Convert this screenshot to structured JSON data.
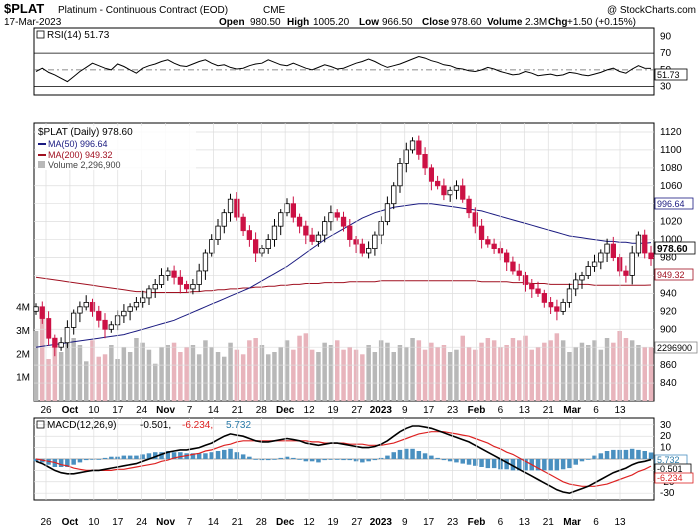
{
  "header": {
    "symbol": "$PLAT",
    "name": "Platinum - Continuous Contract (EOD)",
    "exchange": "CME",
    "copyright": "@ StockCharts.com",
    "date": "17-Mar-2023",
    "open_label": "Open",
    "open": "980.50",
    "high_label": "High",
    "high": "1005.20",
    "low_label": "Low",
    "low": "966.50",
    "close_label": "Close",
    "close": "978.60",
    "volume_label": "Volume",
    "volume": "2.3M",
    "chg_label": "Chg",
    "chg": "+1.50 (+0.15%)"
  },
  "colors": {
    "up": "#000000",
    "down": "#cc1144",
    "ma50": "#1a1a80",
    "ma200": "#a01020",
    "vol_up": "#b8b8b8",
    "vol_down": "#e8b4bc",
    "macd_line": "#000000",
    "macd_signal": "#dd2222",
    "macd_hist": "#4a90c0",
    "grid": "#dddddd"
  },
  "rsi": {
    "legend": "RSI(14) 51.73",
    "value_badge": "51.73",
    "ticks": [
      "90",
      "70",
      "50",
      "30"
    ]
  },
  "price": {
    "legend_title": "$PLAT (Daily) 978.60",
    "legend_ma50": "MA(50) 996.64",
    "legend_ma200": "MA(200) 949.32",
    "legend_volume": "Volume 2,296,900",
    "badge_ma50": "996.64",
    "badge_close": "978.60",
    "badge_ma200": "949.32",
    "badge_volume": "2296900",
    "ticks": [
      "1120",
      "1100",
      "1080",
      "1060",
      "1040",
      "1020",
      "1000",
      "980",
      "960",
      "940",
      "920",
      "900",
      "880",
      "860",
      "840"
    ],
    "volume_ticks": [
      "4M",
      "3M",
      "2M",
      "1M"
    ]
  },
  "macd": {
    "legend_label": "MACD(12,26,9)",
    "legend_macd": "-0.501,",
    "legend_signal": "-6.234,",
    "legend_hist": "5.732",
    "badge_hist": "5.732",
    "badge_macd": "-0.501",
    "badge_signal": "-6.234",
    "ticks": [
      "30",
      "20",
      "10",
      "0",
      "-10",
      "-20",
      "-30"
    ]
  },
  "x_labels": [
    "26",
    "Oct",
    "10",
    "17",
    "24",
    "Nov",
    "7",
    "14",
    "21",
    "28",
    "Dec",
    "12",
    "19",
    "27",
    "2023",
    "9",
    "17",
    "23",
    "Feb",
    "6",
    "13",
    "21",
    "Mar",
    "6",
    "13"
  ],
  "chart_data": [
    {
      "type": "line",
      "title": "RSI(14) 51.73",
      "ylim": [
        20,
        100
      ],
      "yticks": [
        30,
        50,
        70,
        90
      ],
      "reference_lines": [
        30,
        50,
        70
      ],
      "series": [
        {
          "name": "RSI(14)",
          "values": [
            48,
            52,
            47,
            44,
            40,
            36,
            42,
            48,
            53,
            58,
            55,
            52,
            50,
            57,
            54,
            50,
            46,
            52,
            55,
            57,
            60,
            62,
            58,
            55,
            54,
            57,
            60,
            62,
            58,
            55,
            56,
            53,
            51,
            52,
            55,
            57,
            58,
            62,
            59,
            56,
            55,
            58,
            55,
            52,
            50,
            53,
            56,
            54,
            51,
            52,
            55,
            58,
            60,
            63,
            60,
            56,
            53,
            55,
            57,
            60,
            63,
            66,
            64,
            61,
            59,
            56,
            55,
            52,
            51,
            49,
            48,
            50,
            53,
            51,
            48,
            46,
            44,
            45,
            48,
            46,
            43,
            44,
            45,
            43,
            44,
            47,
            46,
            44,
            43,
            45,
            47,
            50,
            52,
            48,
            46,
            51,
            55,
            52,
            51.73
          ]
        }
      ]
    },
    {
      "type": "candlestick",
      "title": "$PLAT (Daily) 978.60",
      "ylim": [
        820,
        1130
      ],
      "yticks": [
        840,
        860,
        880,
        900,
        920,
        940,
        960,
        980,
        1000,
        1020,
        1040,
        1060,
        1080,
        1100,
        1120
      ],
      "close": [
        925,
        912,
        890,
        880,
        885,
        902,
        918,
        925,
        930,
        920,
        910,
        900,
        905,
        915,
        920,
        925,
        930,
        935,
        945,
        950,
        960,
        965,
        958,
        950,
        945,
        950,
        965,
        985,
        1000,
        1015,
        1030,
        1045,
        1025,
        1010,
        1000,
        985,
        990,
        1000,
        1015,
        1030,
        1040,
        1025,
        1015,
        1005,
        998,
        1005,
        1020,
        1030,
        1025,
        1015,
        1000,
        995,
        985,
        990,
        1005,
        1020,
        1040,
        1060,
        1085,
        1100,
        1110,
        1095,
        1080,
        1065,
        1060,
        1050,
        1055,
        1060,
        1045,
        1030,
        1015,
        1000,
        995,
        990,
        985,
        975,
        965,
        960,
        950,
        945,
        940,
        930,
        925,
        920,
        930,
        945,
        955,
        960,
        970,
        975,
        985,
        995,
        980,
        965,
        960,
        985,
        1005,
        985,
        978.6
      ],
      "ma50": [
        880,
        881,
        882,
        883,
        884,
        885,
        886,
        887,
        888,
        889,
        890,
        891,
        892,
        893,
        894,
        896,
        898,
        900,
        902,
        904,
        906,
        908,
        910,
        913,
        916,
        919,
        922,
        925,
        928,
        931,
        934,
        937,
        940,
        943,
        946,
        950,
        954,
        958,
        962,
        966,
        970,
        975,
        980,
        985,
        990,
        995,
        1000,
        1004,
        1008,
        1012,
        1016,
        1020,
        1024,
        1027,
        1030,
        1032,
        1034,
        1036,
        1037,
        1038,
        1039,
        1040,
        1040,
        1040,
        1039,
        1038,
        1037,
        1036,
        1035,
        1034,
        1033,
        1032,
        1030,
        1028,
        1026,
        1024,
        1022,
        1020,
        1018,
        1016,
        1014,
        1012,
        1010,
        1008,
        1006,
        1004,
        1003,
        1002,
        1001,
        1000,
        999,
        998,
        998,
        997,
        997,
        996,
        996,
        996,
        996.64
      ],
      "ma200": [
        958,
        957,
        956,
        955,
        954,
        953,
        952,
        951,
        950,
        949,
        948,
        947,
        946,
        945,
        944,
        943,
        942,
        942,
        941,
        941,
        941,
        941,
        941,
        941,
        941,
        942,
        942,
        943,
        943,
        944,
        944,
        945,
        945,
        946,
        946,
        947,
        947,
        948,
        948,
        949,
        949,
        950,
        950,
        951,
        951,
        951,
        952,
        952,
        952,
        952,
        953,
        953,
        953,
        953,
        953,
        954,
        954,
        954,
        954,
        954,
        954,
        954,
        954,
        954,
        954,
        954,
        954,
        954,
        954,
        954,
        954,
        953,
        953,
        953,
        953,
        953,
        952,
        952,
        952,
        951,
        951,
        951,
        950,
        950,
        950,
        950,
        950,
        950,
        950,
        949,
        949,
        949,
        949,
        949,
        949,
        949,
        949,
        949,
        949.32
      ]
    },
    {
      "type": "bar",
      "title": "Volume 2,296,900",
      "ylim": [
        0,
        4500000
      ],
      "yticks": [
        "1M",
        "2M",
        "3M",
        "4M"
      ],
      "values": [
        3000000,
        3600000,
        1800000,
        2300000,
        2100000,
        2500000,
        2700000,
        2400000,
        1700000,
        2600000,
        1900000,
        2000000,
        2400000,
        1800000,
        2300000,
        2100000,
        2700000,
        2500000,
        2200000,
        1600000,
        2300000,
        2400000,
        2500000,
        2100000,
        2300000,
        2400000,
        2000000,
        2600000,
        2300000,
        2100000,
        1900000,
        2500000,
        2200000,
        2000000,
        2600000,
        2700000,
        2400000,
        2000000,
        2100000,
        2300000,
        2600000,
        2200000,
        2800000,
        2900000,
        2200000,
        2100000,
        2500000,
        2400000,
        2600000,
        2200000,
        2300000,
        2200000,
        2000000,
        2400000,
        2100000,
        2600000,
        2500000,
        2100000,
        2400000,
        2300000,
        2700000,
        2600000,
        2200000,
        2500000,
        2300000,
        2400000,
        2100000,
        2200000,
        2800000,
        2300000,
        2200000,
        2500000,
        2700000,
        2600000,
        2300000,
        2400000,
        2700000,
        2600000,
        2800000,
        2200000,
        2300000,
        2500000,
        2600000,
        2900000,
        2600000,
        2100000,
        2300000,
        2500000,
        2400000,
        2600000,
        2200000,
        2700000,
        2500000,
        3000000,
        2700000,
        2600000,
        2400000,
        2300000,
        2296900
      ]
    },
    {
      "type": "line",
      "title": "MACD(12,26,9) -0.501, -6.234, 5.732",
      "ylim": [
        -36,
        36
      ],
      "yticks": [
        -30,
        -20,
        -10,
        0,
        10,
        20,
        30
      ],
      "series": [
        {
          "name": "MACD",
          "values": [
            -2,
            -4,
            -7,
            -10,
            -12,
            -13,
            -13,
            -12,
            -11,
            -10,
            -10,
            -9,
            -8,
            -7,
            -6,
            -5,
            -4,
            -2,
            0,
            2,
            4,
            6,
            7,
            8,
            8,
            9,
            10,
            12,
            14,
            17,
            20,
            22,
            21,
            20,
            18,
            16,
            15,
            15,
            16,
            17,
            18,
            17,
            16,
            14,
            13,
            12,
            13,
            14,
            14,
            13,
            12,
            11,
            10,
            10,
            11,
            13,
            16,
            20,
            24,
            27,
            29,
            29,
            28,
            27,
            25,
            23,
            21,
            19,
            17,
            15,
            12,
            9,
            6,
            3,
            0,
            -3,
            -6,
            -9,
            -12,
            -15,
            -18,
            -21,
            -24,
            -27,
            -29,
            -30,
            -28,
            -26,
            -24,
            -21,
            -18,
            -15,
            -12,
            -10,
            -8,
            -5,
            -3,
            -2,
            -0.501
          ]
        },
        {
          "name": "Signal",
          "values": [
            0,
            -1,
            -2,
            -3,
            -5,
            -6,
            -8,
            -9,
            -10,
            -10,
            -10,
            -10,
            -10,
            -9,
            -9,
            -8,
            -7,
            -6,
            -5,
            -4,
            -2,
            -1,
            1,
            2,
            3,
            4,
            5,
            7,
            8,
            10,
            12,
            13,
            15,
            16,
            16,
            16,
            16,
            16,
            16,
            16,
            16,
            16,
            16,
            16,
            15,
            15,
            14,
            14,
            14,
            14,
            13,
            13,
            13,
            12,
            12,
            12,
            13,
            14,
            16,
            18,
            20,
            22,
            23,
            24,
            24,
            24,
            23,
            22,
            21,
            20,
            18,
            16,
            14,
            11,
            9,
            6,
            4,
            1,
            -2,
            -5,
            -8,
            -11,
            -14,
            -17,
            -20,
            -22,
            -23,
            -24,
            -24,
            -24,
            -23,
            -22,
            -20,
            -18,
            -16,
            -14,
            -11,
            -9,
            -6.234
          ]
        },
        {
          "name": "Histogram",
          "values": [
            -2,
            -3,
            -5,
            -7,
            -7,
            -7,
            -5,
            -3,
            -1,
            0,
            0,
            1,
            2,
            2,
            3,
            3,
            3,
            4,
            5,
            6,
            6,
            7,
            6,
            6,
            5,
            5,
            5,
            5,
            6,
            7,
            8,
            9,
            6,
            4,
            2,
            0,
            -1,
            -1,
            0,
            1,
            2,
            1,
            0,
            -2,
            -2,
            -3,
            -1,
            0,
            0,
            -1,
            -1,
            -2,
            -3,
            -2,
            -1,
            1,
            3,
            6,
            8,
            9,
            9,
            7,
            5,
            3,
            1,
            -1,
            -2,
            -3,
            -4,
            -5,
            -6,
            -7,
            -8,
            -8,
            -9,
            -9,
            -10,
            -10,
            -10,
            -10,
            -10,
            -10,
            -10,
            -10,
            -9,
            -8,
            -5,
            -2,
            0,
            3,
            5,
            7,
            8,
            8,
            8,
            9,
            8,
            7,
            5.732
          ]
        }
      ]
    }
  ]
}
